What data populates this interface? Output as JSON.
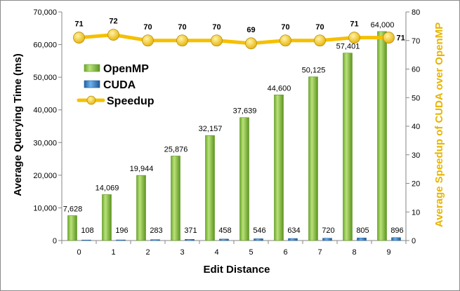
{
  "chart_data": {
    "type": "bar",
    "title": "",
    "xlabel": "Edit Distance",
    "ylabel": "Average Querying Time (ms)",
    "y2label": "Average Speedup of CUDA over OpenMP",
    "categories": [
      "0",
      "1",
      "2",
      "3",
      "4",
      "5",
      "6",
      "7",
      "8",
      "9"
    ],
    "ylim": [
      0,
      70000
    ],
    "y2lim": [
      0,
      80
    ],
    "yticks": [
      "0",
      "10,000",
      "20,000",
      "30,000",
      "40,000",
      "50,000",
      "60,000",
      "70,000"
    ],
    "y2ticks": [
      "0",
      "10",
      "20",
      "30",
      "40",
      "50",
      "60",
      "70",
      "80"
    ],
    "series": [
      {
        "name": "OpenMP",
        "type": "bar",
        "axis": "left",
        "color": "#8cc63f",
        "values": [
          7628,
          14069,
          19944,
          25876,
          32157,
          37639,
          44600,
          50125,
          57401,
          64000
        ],
        "labels": [
          "7,628",
          "14,069",
          "19,944",
          "25,876",
          "32,157",
          "37,639",
          "44,600",
          "50,125",
          "57,401",
          "64,000"
        ]
      },
      {
        "name": "CUDA",
        "type": "bar",
        "axis": "left",
        "color": "#2f7fc8",
        "values": [
          108,
          196,
          283,
          371,
          458,
          546,
          634,
          720,
          805,
          896
        ],
        "labels": [
          "108",
          "196",
          "283",
          "371",
          "458",
          "546",
          "634",
          "720",
          "805",
          "896"
        ]
      },
      {
        "name": "Speedup",
        "type": "line",
        "axis": "right",
        "color": "#f5c000",
        "values": [
          71,
          72,
          70,
          70,
          70,
          69,
          70,
          70,
          71,
          71
        ],
        "labels": [
          "71",
          "72",
          "70",
          "70",
          "70",
          "69",
          "70",
          "70",
          "71",
          "71"
        ]
      }
    ],
    "legend": "top-left",
    "grid": false
  }
}
